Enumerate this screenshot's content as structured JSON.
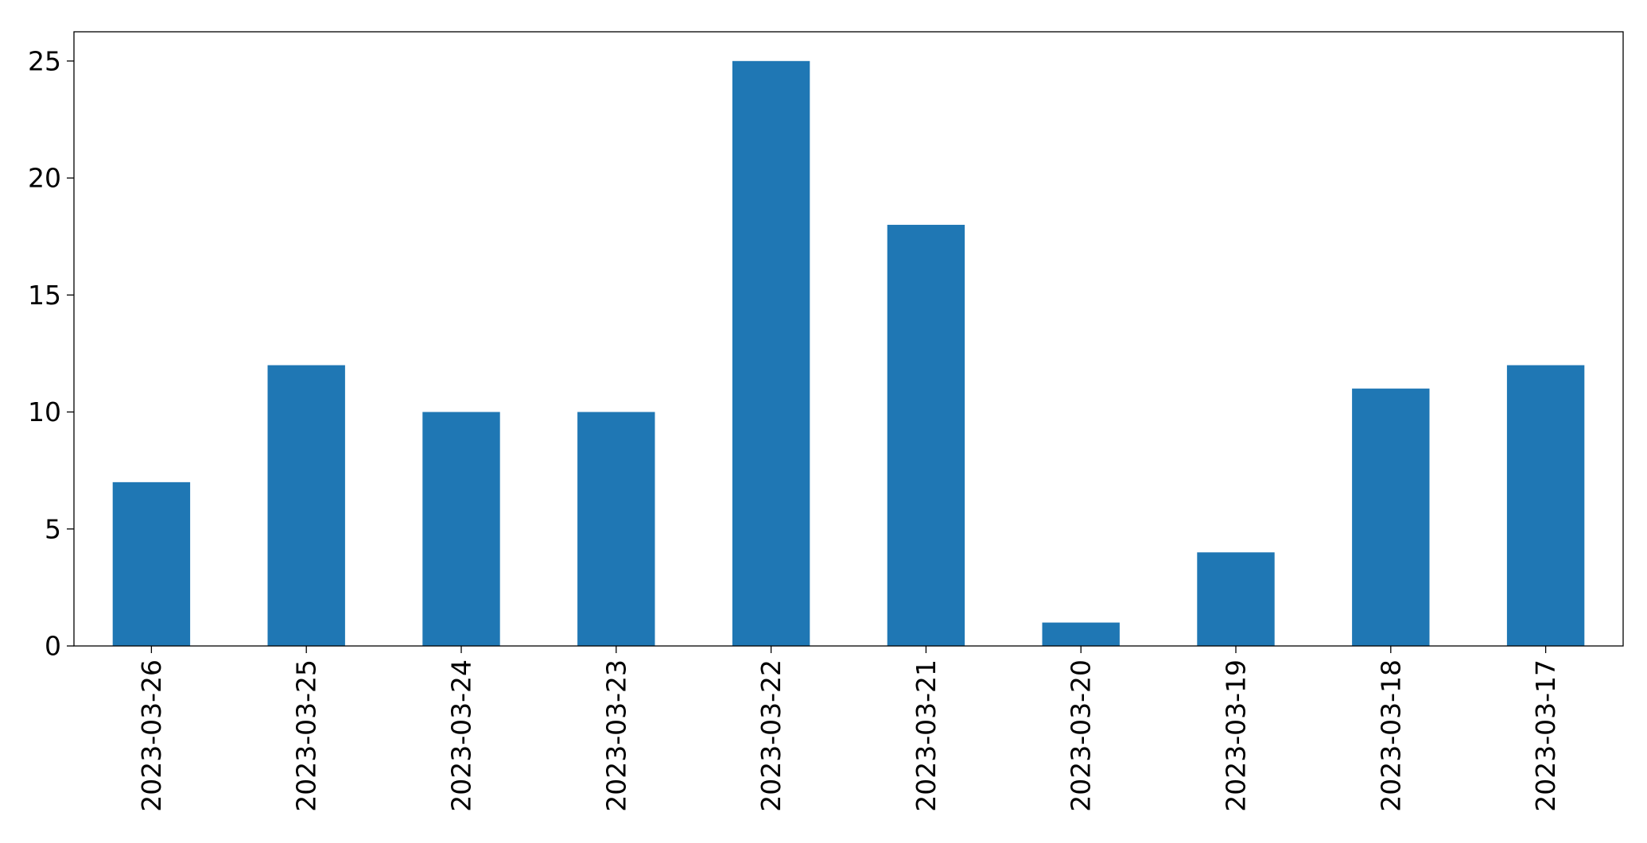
{
  "chart_data": {
    "type": "bar",
    "title": "",
    "xlabel": "",
    "ylabel": "",
    "categories": [
      "2023-03-26",
      "2023-03-25",
      "2023-03-24",
      "2023-03-23",
      "2023-03-22",
      "2023-03-21",
      "2023-03-20",
      "2023-03-19",
      "2023-03-18",
      "2023-03-17"
    ],
    "values": [
      7,
      12,
      10,
      10,
      25,
      18,
      1,
      4,
      11,
      12
    ],
    "ylim": [
      0,
      26.25
    ],
    "yticks": [
      0,
      5,
      10,
      15,
      20,
      25
    ],
    "grid": false,
    "legend": "none",
    "bar_color": "#1f77b4"
  }
}
